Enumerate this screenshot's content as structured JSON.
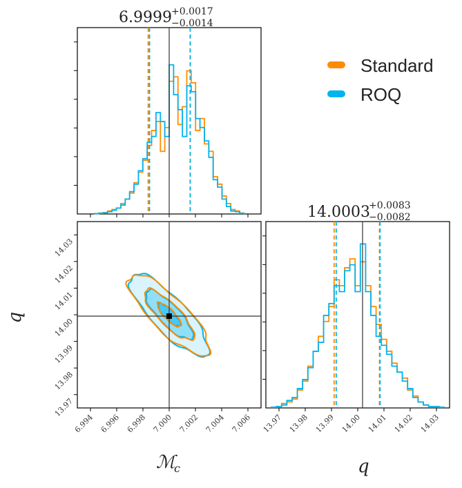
{
  "chart_data": {
    "type": "corner",
    "colors": {
      "standard": "#ff8c00",
      "roq": "#00b4f0",
      "truth": "#333333",
      "frame": "#000000"
    },
    "legend": [
      {
        "key": "standard",
        "label": "Standard"
      },
      {
        "key": "roq",
        "label": "ROQ"
      }
    ],
    "parameters": [
      {
        "name": "Mc",
        "label": "ℳ",
        "label_sub": "c",
        "truth": 7.0,
        "range": [
          6.993,
          7.007
        ],
        "ticks": [
          6.994,
          6.996,
          6.998,
          7.0,
          7.002,
          7.004,
          7.006
        ],
        "tick_labels": [
          "6.994",
          "6.996",
          "6.998",
          "7.000",
          "7.002",
          "7.004",
          "7.006"
        ],
        "title": {
          "value": "6.9999",
          "plus": "+0.0017",
          "minus": "−0.0014"
        },
        "quantiles": {
          "standard": [
            6.9984,
            7.0016
          ],
          "roq": [
            6.9985,
            7.0016
          ]
        }
      },
      {
        "name": "q",
        "label": "q",
        "truth": 14.0,
        "range": [
          13.965,
          14.035
        ],
        "ticks": [
          13.97,
          13.98,
          13.99,
          14.0,
          14.01,
          14.02,
          14.03
        ],
        "tick_labels": [
          "13.97",
          "13.98",
          "13.99",
          "14.00",
          "14.01",
          "14.02",
          "14.03"
        ],
        "title": {
          "value": "14.0003",
          "plus": "+0.0083",
          "minus": "−0.0082"
        },
        "quantiles": {
          "standard": [
            13.991,
            14.0083
          ],
          "roq": [
            13.9918,
            14.0085
          ]
        }
      }
    ],
    "hist_mc": {
      "bin_edges_range": [
        6.9943,
        7.0057
      ],
      "n_bins": 34,
      "ylim": [
        0,
        1.25
      ],
      "standard": [
        0.003,
        0.006,
        0.01,
        0.02,
        0.03,
        0.04,
        0.07,
        0.1,
        0.14,
        0.21,
        0.28,
        0.36,
        0.46,
        0.56,
        0.62,
        0.42,
        0.58,
        0.89,
        0.92,
        0.6,
        0.72,
        0.96,
        0.88,
        0.56,
        0.64,
        0.47,
        0.42,
        0.25,
        0.2,
        0.12,
        0.07,
        0.03,
        0.02,
        0.006
      ],
      "roq": [
        0.002,
        0.005,
        0.008,
        0.015,
        0.025,
        0.04,
        0.06,
        0.1,
        0.15,
        0.2,
        0.29,
        0.37,
        0.48,
        0.52,
        0.68,
        0.62,
        0.52,
        1.0,
        0.8,
        0.7,
        0.52,
        0.86,
        0.82,
        0.64,
        0.58,
        0.49,
        0.38,
        0.23,
        0.18,
        0.1,
        0.05,
        0.02,
        0.015,
        0.005
      ]
    },
    "hist_q": {
      "bin_edges_range": [
        13.967,
        14.033
      ],
      "n_bins": 33,
      "ylim": [
        0,
        1.25
      ],
      "standard": [
        0.005,
        0.01,
        0.03,
        0.04,
        0.06,
        0.12,
        0.18,
        0.28,
        0.38,
        0.48,
        0.58,
        0.68,
        0.86,
        0.82,
        0.94,
        1.0,
        0.82,
        0.98,
        0.82,
        0.68,
        0.56,
        0.46,
        0.38,
        0.3,
        0.24,
        0.2,
        0.12,
        0.08,
        0.04,
        0.02,
        0.01,
        0.01,
        0.005
      ],
      "roq": [
        0.005,
        0.01,
        0.02,
        0.05,
        0.07,
        0.13,
        0.19,
        0.27,
        0.38,
        0.44,
        0.62,
        0.7,
        0.82,
        0.78,
        0.92,
        0.96,
        0.78,
        1.1,
        0.78,
        0.62,
        0.48,
        0.42,
        0.36,
        0.28,
        0.24,
        0.18,
        0.13,
        0.07,
        0.04,
        0.02,
        0.01,
        0.01,
        0.005
      ]
    },
    "contours": {
      "center": [
        7.0,
        14.0
      ],
      "corr": -0.82,
      "levels": [
        "1σ",
        "2σ",
        "3σ"
      ],
      "standard": [
        {
          "sx": 0.0009,
          "sy": 0.0045
        },
        {
          "sx": 0.0019,
          "sy": 0.0095
        },
        {
          "sx": 0.0031,
          "sy": 0.0152
        }
      ],
      "roq": [
        {
          "sx": 0.00085,
          "sy": 0.0043
        },
        {
          "sx": 0.0018,
          "sy": 0.0092
        },
        {
          "sx": 0.003,
          "sy": 0.0155
        }
      ]
    }
  }
}
